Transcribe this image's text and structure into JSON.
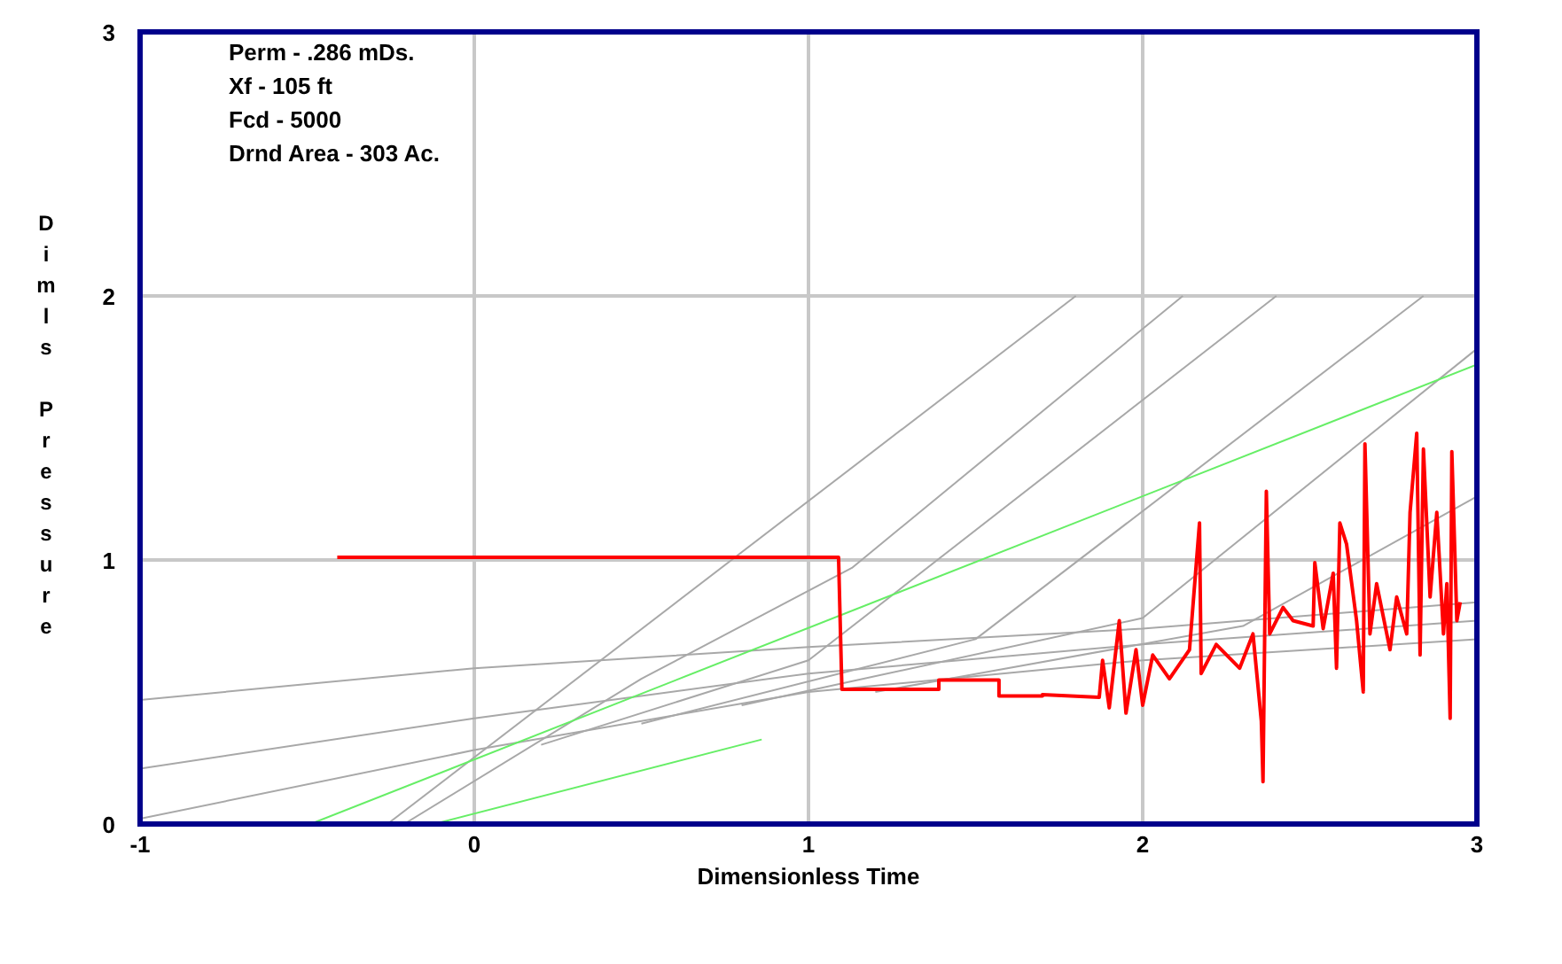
{
  "chart_data": {
    "type": "line",
    "xlabel": "Dimensionless Time",
    "ylabel": "Dimls Pressure",
    "xlim": [
      -1,
      3
    ],
    "ylim": [
      0,
      3
    ],
    "xticks": [
      -1,
      0,
      1,
      2,
      3
    ],
    "yticks": [
      0,
      1,
      2,
      3
    ],
    "grid": true,
    "marker": "none",
    "line_style": "solid",
    "annotations": [
      "Perm - .286 mDs.",
      "Xf - 105 ft",
      "Fcd - 5000",
      "Drnd Area - 303 Ac."
    ],
    "series": [
      {
        "color": "#a8a8a8",
        "x": [
          -1,
          0,
          1,
          2,
          3
        ],
        "values": [
          0.47,
          0.59,
          0.67,
          0.74,
          0.84
        ]
      },
      {
        "color": "#a8a8a8",
        "x": [
          -1,
          0,
          1,
          2,
          3
        ],
        "values": [
          0.21,
          0.4,
          0.57,
          0.68,
          0.77
        ]
      },
      {
        "color": "#a8a8a8",
        "x": [
          -1,
          0,
          1,
          2,
          3
        ],
        "values": [
          0.02,
          0.28,
          0.5,
          0.62,
          0.7
        ]
      },
      {
        "color": "#a8a8a8",
        "x": [
          -0.26,
          1.8
        ],
        "values": [
          0,
          2
        ]
      },
      {
        "color": "#a8a8a8",
        "x": [
          -0.21,
          0.5,
          1.13,
          2.12
        ],
        "values": [
          0,
          0.55,
          0.97,
          2
        ]
      },
      {
        "color": "#a8a8a8",
        "x": [
          0.2,
          1,
          2.4
        ],
        "values": [
          0.3,
          0.62,
          2
        ]
      },
      {
        "color": "#a8a8a8",
        "x": [
          0.5,
          1.5,
          2.84
        ],
        "values": [
          0.38,
          0.7,
          2
        ]
      },
      {
        "color": "#a8a8a8",
        "x": [
          0.8,
          2,
          3
        ],
        "values": [
          0.45,
          0.78,
          1.8
        ]
      },
      {
        "color": "#a8a8a8",
        "x": [
          1.2,
          2.3,
          3
        ],
        "values": [
          0.5,
          0.75,
          1.24
        ]
      },
      {
        "color": "#66ee66",
        "x": [
          -0.49,
          3
        ],
        "values": [
          0,
          1.74
        ]
      },
      {
        "color": "#66ee66",
        "x": [
          -0.12,
          0.86
        ],
        "values": [
          0,
          0.32
        ]
      },
      {
        "color": "#ff0000",
        "x": [
          -0.41,
          1.09,
          1.1,
          1.39,
          1.39,
          1.57,
          1.57,
          1.7,
          1.7,
          1.87,
          1.88,
          1.9,
          1.93,
          1.95,
          1.98,
          2,
          2.03,
          2.08,
          2.14,
          2.17,
          2.175,
          2.22,
          2.29,
          2.33,
          2.355,
          2.36,
          2.37,
          2.38,
          2.42,
          2.45,
          2.51,
          2.515,
          2.54,
          2.57,
          2.58,
          2.59,
          2.61,
          2.64,
          2.66,
          2.665,
          2.68,
          2.7,
          2.74,
          2.76,
          2.79,
          2.8,
          2.82,
          2.83,
          2.84,
          2.86,
          2.88,
          2.9,
          2.91,
          2.92,
          2.925,
          2.94,
          2.95
        ],
        "values": [
          1.01,
          1.01,
          0.51,
          0.51,
          0.545,
          0.545,
          0.485,
          0.485,
          0.49,
          0.48,
          0.62,
          0.44,
          0.77,
          0.42,
          0.66,
          0.45,
          0.64,
          0.55,
          0.66,
          1.14,
          0.57,
          0.68,
          0.59,
          0.72,
          0.39,
          0.16,
          1.26,
          0.72,
          0.82,
          0.77,
          0.75,
          0.99,
          0.74,
          0.95,
          0.59,
          1.14,
          1.06,
          0.77,
          0.5,
          1.44,
          0.72,
          0.91,
          0.66,
          0.86,
          0.72,
          1.18,
          1.48,
          0.64,
          1.42,
          0.86,
          1.18,
          0.72,
          0.91,
          0.4,
          1.41,
          0.77,
          0.84
        ]
      }
    ]
  }
}
